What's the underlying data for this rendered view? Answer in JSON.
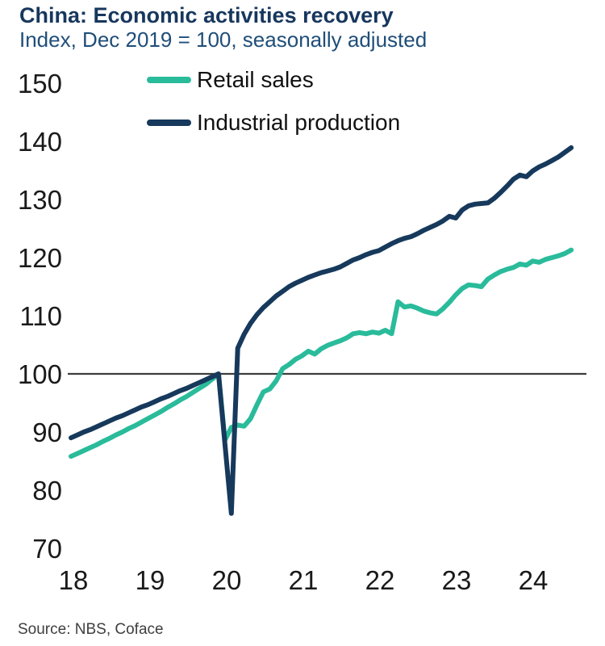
{
  "header": {
    "title": "China: Economic activities recovery",
    "subtitle": "Index, Dec 2019 = 100, seasonally adjusted"
  },
  "source": "Source: NBS, Coface",
  "colors": {
    "title": "#17375D",
    "subtitle": "#1F4E79",
    "retail": "#2ABB9B",
    "industrial": "#16395C",
    "reference_line": "#3d3d3d",
    "axis_text": "#1a1a1a"
  },
  "legend": {
    "items": [
      "Retail sales",
      "Industrial production"
    ]
  },
  "chart_data": {
    "type": "line",
    "title": "China: Economic activities recovery",
    "subtitle": "Index, Dec 2019 = 100, seasonally adjusted",
    "x_unit": "month",
    "x_range": {
      "start": "2018-01",
      "end": "2024-07",
      "interval": "monthly"
    },
    "x_tick_labels": [
      "18",
      "19",
      "20",
      "21",
      "22",
      "23",
      "24"
    ],
    "y_ticks": [
      150,
      140,
      130,
      120,
      110,
      100,
      90,
      80,
      70
    ],
    "ylim": [
      70,
      150
    ],
    "reference_line_y": 100,
    "grid": false,
    "legend_position": "top-left-inside",
    "series": [
      {
        "name": "Retail sales",
        "color": "#2ABB9B",
        "values": [
          85.8,
          86.3,
          86.8,
          87.3,
          87.8,
          88.4,
          88.9,
          89.5,
          90.0,
          90.6,
          91.1,
          91.7,
          92.3,
          92.9,
          93.5,
          94.2,
          94.8,
          95.5,
          96.1,
          96.8,
          97.5,
          98.2,
          99.1,
          100.0,
          88.6,
          90.8,
          91.2,
          91.0,
          92.3,
          94.7,
          96.9,
          97.4,
          98.8,
          100.9,
          101.6,
          102.5,
          103.1,
          103.9,
          103.4,
          104.3,
          104.9,
          105.3,
          105.7,
          106.2,
          106.9,
          107.1,
          106.9,
          107.2,
          107.0,
          107.5,
          106.9,
          112.4,
          111.5,
          111.7,
          111.3,
          110.8,
          110.5,
          110.3,
          111.2,
          112.3,
          113.6,
          114.7,
          115.3,
          115.2,
          115.0,
          116.3,
          117.0,
          117.6,
          118.0,
          118.3,
          118.9,
          118.7,
          119.4,
          119.2,
          119.7,
          120.0,
          120.3,
          120.7,
          121.3
        ]
      },
      {
        "name": "Industrial production",
        "color": "#16395C",
        "values": [
          89.0,
          89.5,
          90.0,
          90.4,
          90.9,
          91.4,
          91.9,
          92.4,
          92.8,
          93.3,
          93.8,
          94.3,
          94.7,
          95.2,
          95.7,
          96.1,
          96.6,
          97.1,
          97.5,
          98.0,
          98.5,
          99.0,
          99.5,
          100.0,
          88.0,
          76.0,
          104.4,
          106.8,
          108.7,
          110.2,
          111.4,
          112.4,
          113.4,
          114.2,
          115.0,
          115.6,
          116.1,
          116.6,
          117.0,
          117.4,
          117.7,
          118.0,
          118.4,
          119.0,
          119.6,
          120.0,
          120.5,
          120.9,
          121.2,
          121.8,
          122.4,
          122.9,
          123.3,
          123.6,
          124.1,
          124.7,
          125.2,
          125.7,
          126.3,
          127.1,
          126.8,
          128.2,
          128.9,
          129.2,
          129.3,
          129.4,
          130.2,
          131.2,
          132.3,
          133.5,
          134.2,
          133.9,
          134.9,
          135.6,
          136.1,
          136.7,
          137.3,
          138.1,
          138.9
        ]
      }
    ]
  }
}
